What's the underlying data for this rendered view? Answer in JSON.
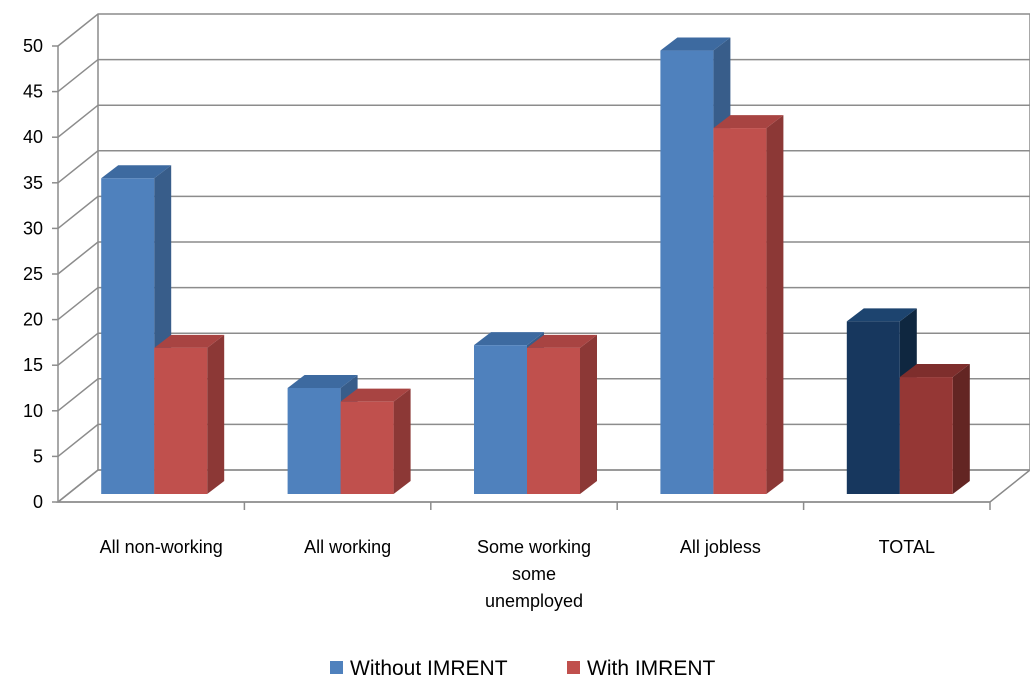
{
  "chart_data": {
    "type": "bar",
    "style": "3d-clustered-column",
    "categories": [
      [
        "All non-working"
      ],
      [
        "All working"
      ],
      [
        "Some working",
        "some",
        "unemployed"
      ],
      [
        "All jobless"
      ],
      [
        "TOTAL"
      ]
    ],
    "series": [
      {
        "name": "Without IMRENT",
        "values": [
          35.5,
          12.5,
          17.2,
          49.5,
          19.8
        ],
        "colors": {
          "front": "#4f81bd",
          "side": "#385d8a",
          "top": "#3d6aa0"
        },
        "highlight_colors": {
          "front": "#17375e",
          "side": "#0f2740",
          "top": "#1d446f"
        }
      },
      {
        "name": "With IMRENT",
        "values": [
          16.9,
          11.0,
          16.9,
          41.0,
          13.7
        ],
        "colors": {
          "front": "#c0504d",
          "side": "#8c3836",
          "top": "#a84442"
        },
        "highlight_colors": {
          "front": "#953735",
          "side": "#632523",
          "top": "#7e2e2c"
        }
      }
    ],
    "highlight_category_index": 4,
    "ylim": [
      0,
      50
    ],
    "yticks": [
      0,
      5,
      10,
      15,
      20,
      25,
      30,
      35,
      40,
      45,
      50
    ],
    "grid": true,
    "legend": "bottom",
    "title": "",
    "xlabel": "",
    "ylabel": ""
  }
}
